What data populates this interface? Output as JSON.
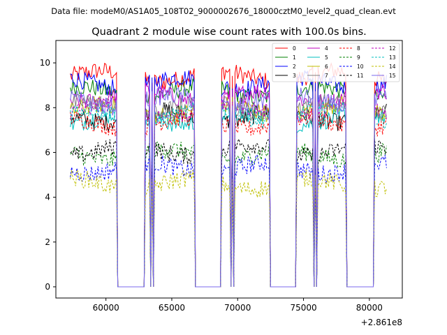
{
  "header": {
    "file_label": "Data file: modeM0/AS1A05_108T02_9000002676_18000cztM0_level2_quad_clean.evt"
  },
  "chart_data": {
    "type": "line",
    "title": "Quadrant 2 module wise count rates with 100.0s bins.",
    "xlabel": "",
    "ylabel": "",
    "x_offset_label": "+2.861e8",
    "xlim": [
      56200,
      82500
    ],
    "ylim": [
      -0.5,
      11.0
    ],
    "x_ticks": [
      60000,
      65000,
      70000,
      75000,
      80000
    ],
    "x_tick_labels": [
      "60000",
      "65000",
      "70000",
      "75000",
      "80000"
    ],
    "y_ticks": [
      0,
      2,
      4,
      6,
      8,
      10
    ],
    "y_tick_labels": [
      "0",
      "2",
      "4",
      "6",
      "8",
      "10"
    ],
    "grid": false,
    "legend_position": "top-right",
    "on_intervals": [
      [
        57300,
        60800
      ],
      [
        63000,
        63300
      ],
      [
        63500,
        63500
      ],
      [
        63700,
        66700
      ],
      [
        68800,
        69400
      ],
      [
        69600,
        69600
      ],
      [
        69800,
        72400
      ],
      [
        74500,
        75700
      ],
      [
        75900,
        75900
      ],
      [
        76100,
        78200
      ],
      [
        80400,
        81300
      ]
    ],
    "series": [
      {
        "name": "0",
        "color": "#ff0000",
        "dash": "solid",
        "level": 9.4
      },
      {
        "name": "1",
        "color": "#008000",
        "dash": "solid",
        "level": 8.7
      },
      {
        "name": "2",
        "color": "#0000ff",
        "dash": "solid",
        "level": 9.1
      },
      {
        "name": "3",
        "color": "#000000",
        "dash": "solid",
        "level": 7.6
      },
      {
        "name": "4",
        "color": "#bf00bf",
        "dash": "solid",
        "level": 8.5
      },
      {
        "name": "5",
        "color": "#00bfbf",
        "dash": "solid",
        "level": 7.5
      },
      {
        "name": "6",
        "color": "#bfbf00",
        "dash": "solid",
        "level": 7.9
      },
      {
        "name": "7",
        "color": "#808080",
        "dash": "solid",
        "level": 8.0
      },
      {
        "name": "8",
        "color": "#ff0000",
        "dash": "dashed",
        "level": 7.3
      },
      {
        "name": "9",
        "color": "#008000",
        "dash": "dashed",
        "level": 5.9
      },
      {
        "name": "10",
        "color": "#0000ff",
        "dash": "dashed",
        "level": 5.3
      },
      {
        "name": "11",
        "color": "#000000",
        "dash": "dashed",
        "level": 6.1
      },
      {
        "name": "12",
        "color": "#bf00bf",
        "dash": "dashed",
        "level": 7.9
      },
      {
        "name": "13",
        "color": "#00bfbf",
        "dash": "dashed",
        "level": 7.7
      },
      {
        "name": "14",
        "color": "#bfbf00",
        "dash": "dashed",
        "level": 4.6
      },
      {
        "name": "15",
        "color": "#7b68ee",
        "dash": "solid",
        "level": 8.3
      }
    ]
  }
}
